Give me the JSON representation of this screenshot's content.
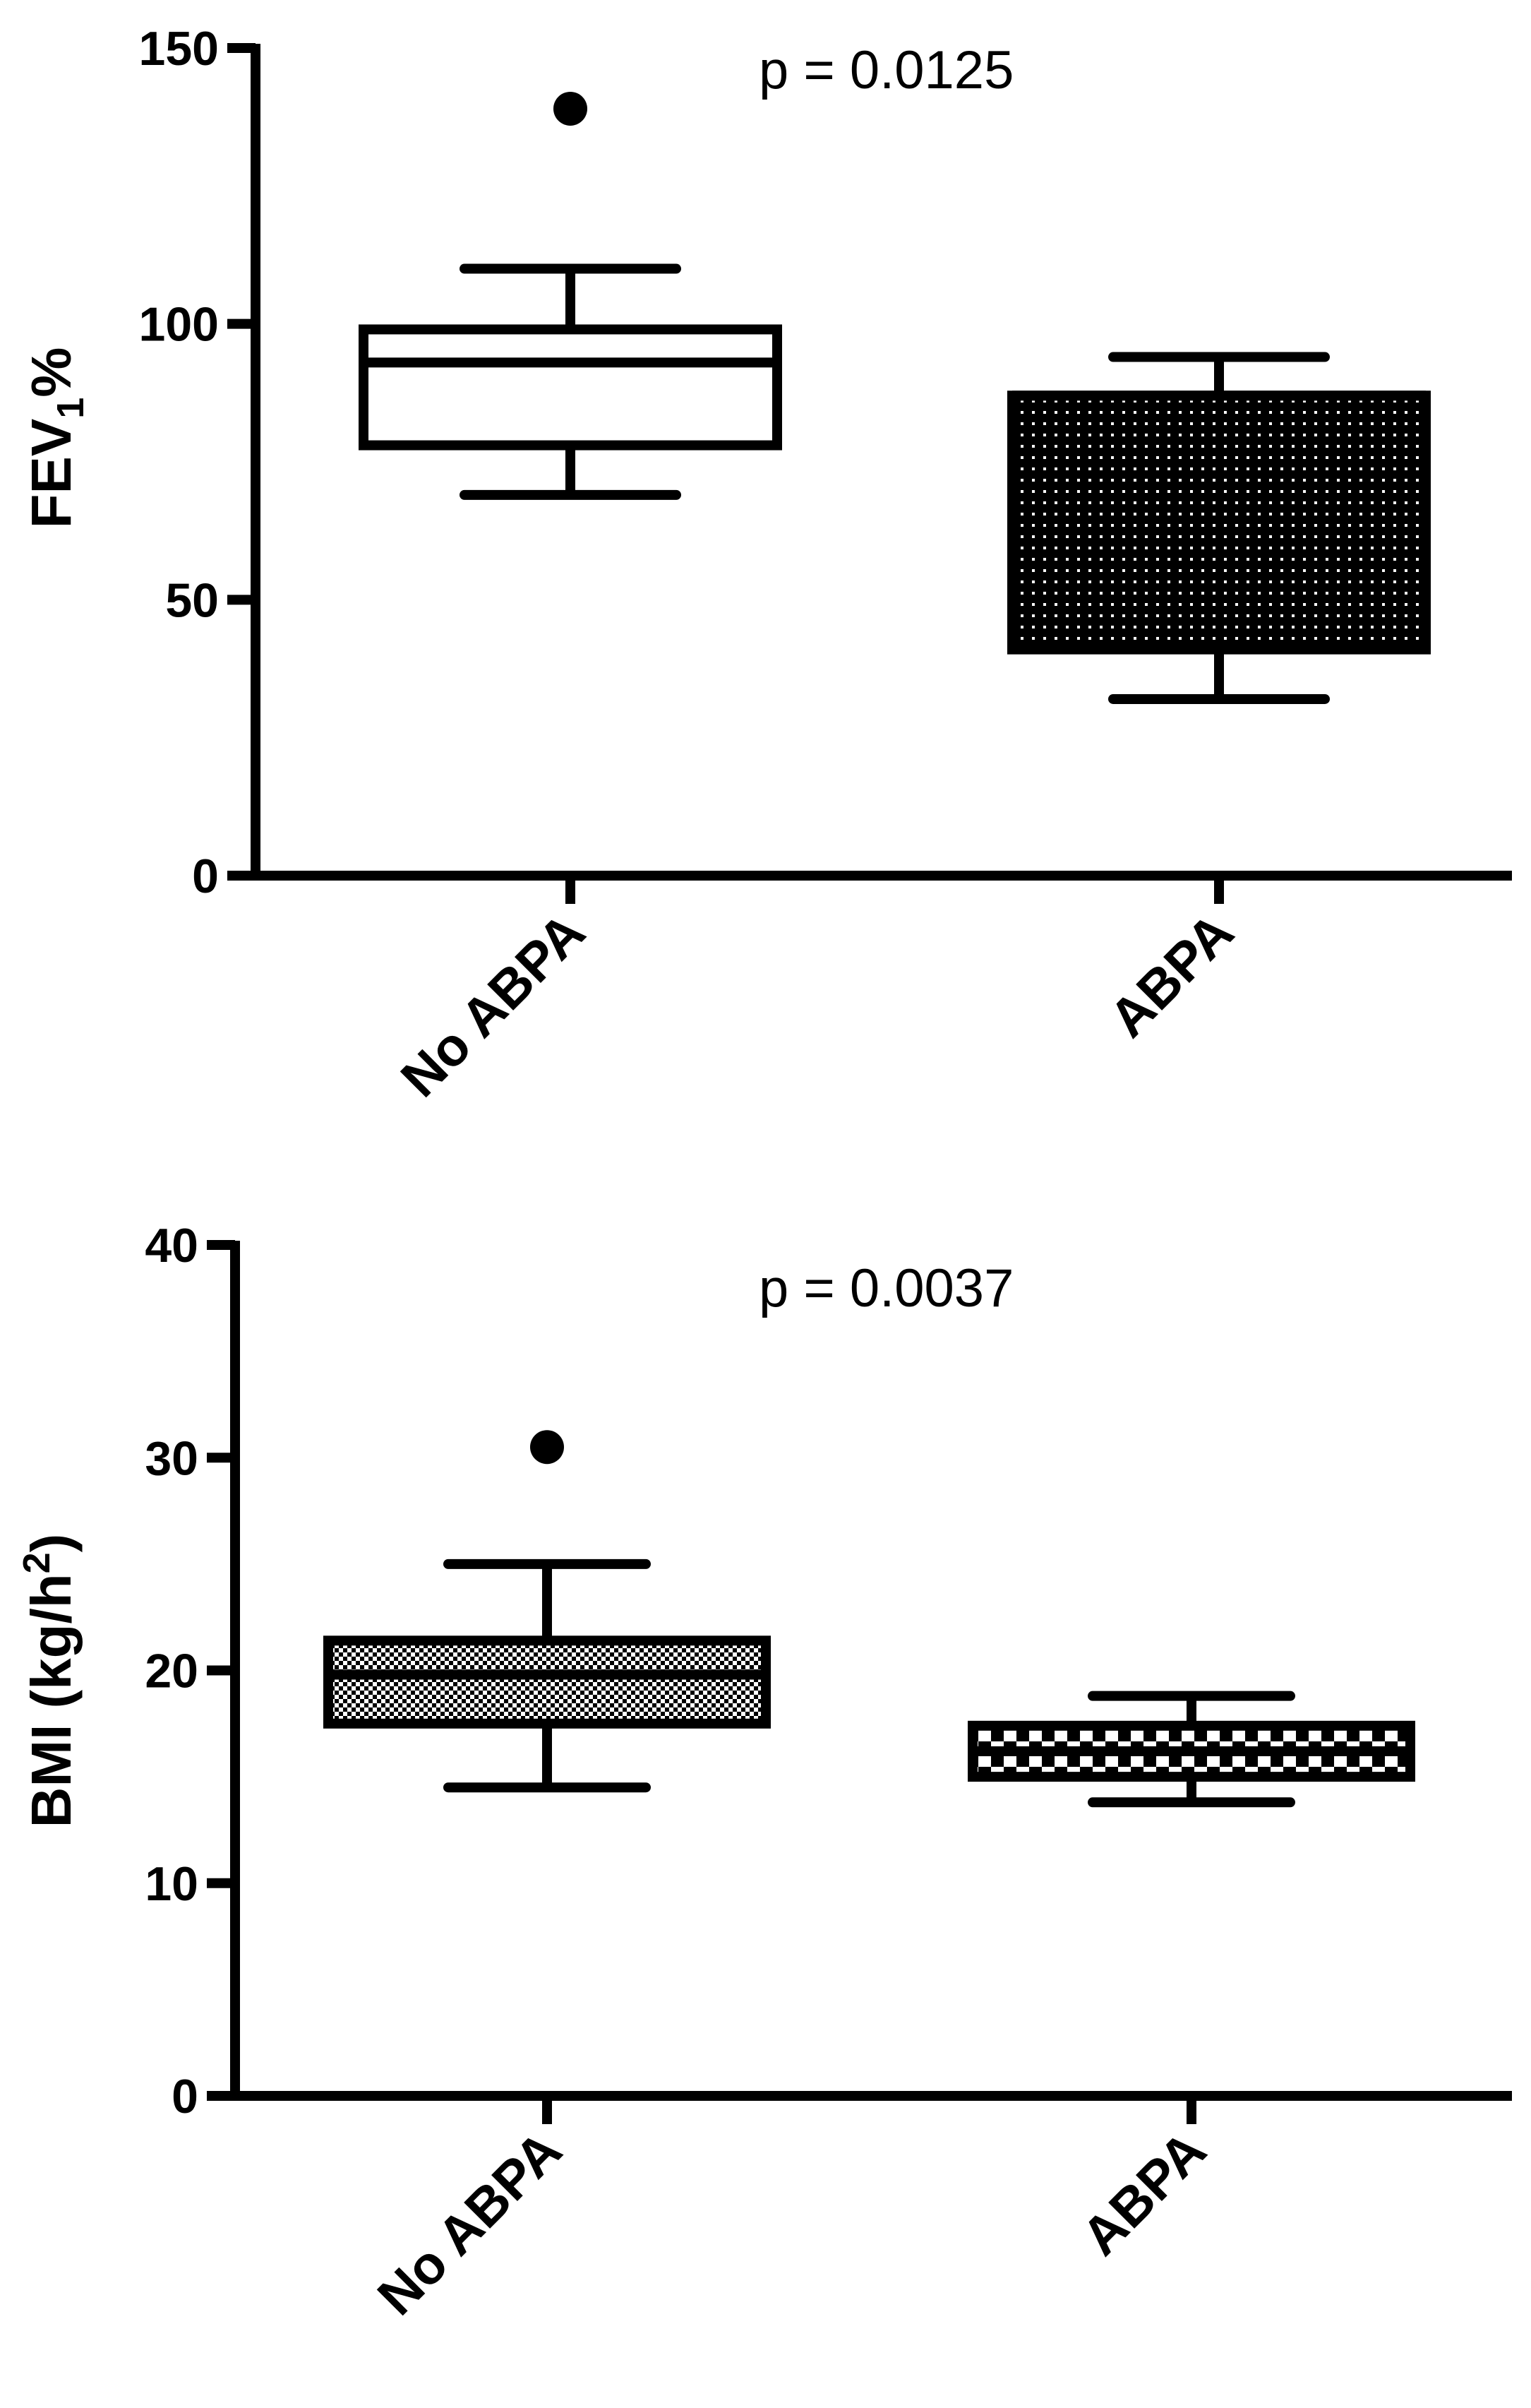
{
  "chart_data": [
    {
      "type": "box",
      "ylabel_main": "FEV",
      "ylabel_sub": "1",
      "ylabel_tail": "%",
      "annotation": "p = 0.0125",
      "ylim": [
        0,
        150
      ],
      "yticks": [
        0,
        50,
        100,
        150
      ],
      "ytick_labels": [
        "0",
        "50",
        "100",
        "150"
      ],
      "categories": [
        "No ABPA",
        "ABPA"
      ],
      "boxes": [
        {
          "category": "No ABPA",
          "whisker_low": 69,
          "q1": 78,
          "median": 93,
          "q3": 99,
          "whisker_high": 110,
          "outliers": [
            139
          ],
          "fill": "white"
        },
        {
          "category": "ABPA",
          "whisker_low": 32,
          "q1": 41,
          "median": 87,
          "q3": 87,
          "whisker_high": 94,
          "outliers": [],
          "fill": "dotted-black"
        }
      ]
    },
    {
      "type": "box",
      "ylabel_main": "BMI (kg/h",
      "ylabel_sup": "2",
      "ylabel_tail": ")",
      "annotation": "p = 0.0037",
      "ylim": [
        0,
        40
      ],
      "yticks": [
        0,
        10,
        20,
        30,
        40
      ],
      "ytick_labels": [
        "0",
        "10",
        "20",
        "30",
        "40"
      ],
      "categories": [
        "No ABPA",
        "ABPA"
      ],
      "boxes": [
        {
          "category": "No ABPA",
          "whisker_low": 14.5,
          "q1": 17.5,
          "median": 19.8,
          "q3": 21.4,
          "whisker_high": 25,
          "outliers": [
            30.5
          ],
          "fill": "checker-fine"
        },
        {
          "category": "ABPA",
          "whisker_low": 13.8,
          "q1": 15,
          "median": 16.2,
          "q3": 17.4,
          "whisker_high": 18.8,
          "outliers": [],
          "fill": "checker-coarse"
        }
      ]
    }
  ]
}
